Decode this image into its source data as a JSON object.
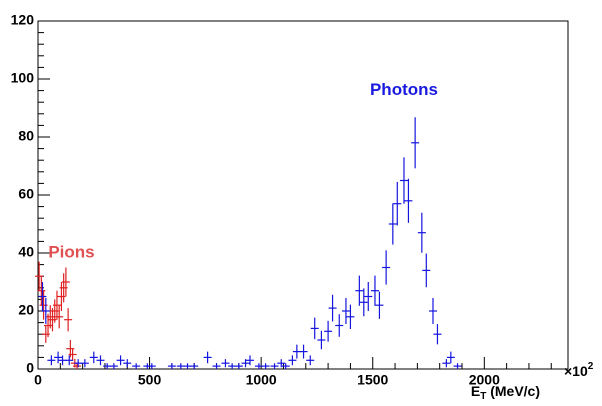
{
  "chart_data": {
    "type": "errorbar",
    "xlabel": "E",
    "xlabel_sub": "T",
    "xlabel_unit": " (MeV/c)",
    "x_multiplier": "×10",
    "x_multiplier_exp": "2",
    "xlim": [
      0,
      2375
    ],
    "xticks": [
      0,
      500,
      1000,
      1500,
      2000
    ],
    "ylim": [
      0,
      120
    ],
    "yticks": [
      0,
      20,
      40,
      60,
      80,
      100,
      120
    ],
    "annotations": [
      {
        "text": "Pions",
        "color": "#e05050",
        "x": 150,
        "y": 40
      },
      {
        "text": "Photons",
        "color": "#1a1ae0",
        "x": 1640,
        "y": 96
      }
    ],
    "series": [
      {
        "name": "Pions",
        "color": "#e02020",
        "x": [
          5,
          15,
          25,
          35,
          45,
          55,
          65,
          75,
          85,
          95,
          105,
          115,
          125,
          135,
          145,
          155,
          165,
          175
        ],
        "values": [
          32,
          27,
          22,
          12,
          15,
          18,
          17,
          20,
          22,
          18,
          25,
          28,
          30,
          17,
          7,
          5,
          2,
          1
        ],
        "errors": [
          5,
          5,
          5,
          3,
          4,
          4,
          4,
          4,
          5,
          4,
          5,
          5,
          5,
          4,
          3,
          2,
          1.5,
          1
        ]
      },
      {
        "name": "Photons",
        "color": "#1515e0",
        "x": [
          20,
          35,
          60,
          90,
          110,
          140,
          180,
          210,
          250,
          280,
          310,
          340,
          370,
          400,
          440,
          490,
          510,
          600,
          640,
          670,
          700,
          760,
          800,
          840,
          870,
          900,
          930,
          950,
          990,
          1020,
          1060,
          1090,
          1110,
          1140,
          1160,
          1190,
          1220,
          1240,
          1270,
          1300,
          1320,
          1350,
          1380,
          1400,
          1440,
          1460,
          1480,
          1510,
          1530,
          1560,
          1590,
          1610,
          1640,
          1660,
          1690,
          1720,
          1740,
          1770,
          1790,
          1830,
          1850,
          1880
        ],
        "values": [
          25,
          20,
          3,
          4,
          3,
          3,
          2,
          2,
          4,
          3,
          1,
          1,
          3,
          2,
          1,
          1,
          1,
          1,
          1,
          1,
          1,
          4,
          1,
          2,
          1,
          1,
          2,
          3,
          1,
          1,
          1,
          2,
          1,
          3,
          6,
          6,
          3,
          14,
          10,
          13,
          21,
          15,
          20,
          18,
          27,
          23,
          25,
          27,
          22,
          35,
          50,
          57,
          65,
          58,
          78,
          47,
          34,
          20,
          12,
          2,
          4,
          1
        ],
        "errors": [
          5,
          4.5,
          1.7,
          2,
          1.7,
          1.7,
          1.4,
          1.4,
          2,
          1.7,
          1,
          1,
          1.7,
          1.4,
          1,
          1,
          1,
          1,
          1,
          1,
          1,
          2,
          1,
          1.4,
          1,
          1,
          1.4,
          1.7,
          1,
          1,
          1,
          1.4,
          1,
          1.7,
          2.4,
          2.4,
          1.7,
          3.7,
          3.2,
          3.6,
          4.6,
          3.9,
          4.5,
          4.2,
          5.2,
          4.8,
          5,
          5.2,
          4.7,
          5.9,
          7.1,
          7.5,
          8,
          7.6,
          8.8,
          6.9,
          5.8,
          4.5,
          3.5,
          1.4,
          2,
          1
        ]
      }
    ]
  }
}
